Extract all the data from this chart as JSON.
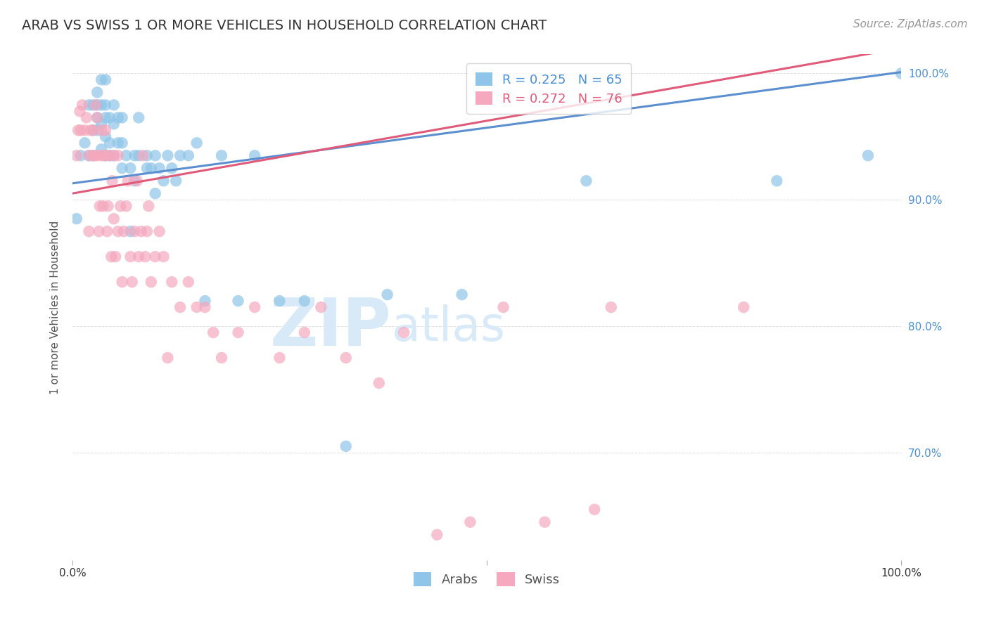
{
  "title": "ARAB VS SWISS 1 OR MORE VEHICLES IN HOUSEHOLD CORRELATION CHART",
  "source": "Source: ZipAtlas.com",
  "ylabel": "1 or more Vehicles in Household",
  "xlim": [
    0.0,
    1.0
  ],
  "ylim": [
    0.615,
    1.015
  ],
  "yticks": [
    0.9,
    1.0
  ],
  "ytick_labels_right": [
    "90.0%",
    "100.0%"
  ],
  "ytick_positions": [
    0.9,
    1.0
  ],
  "arab_color": "#8ec5e8",
  "swiss_color": "#f5a8be",
  "arab_R": 0.225,
  "arab_N": 65,
  "swiss_R": 0.272,
  "swiss_N": 76,
  "line_color_arab": "#5b8fcf",
  "line_color_swiss": "#e05a7a",
  "watermark_zip": "ZIP",
  "watermark_atlas": "atlas",
  "watermark_color": "#d8eaf8",
  "arab_x": [
    0.005,
    0.01,
    0.015,
    0.02,
    0.02,
    0.025,
    0.025,
    0.025,
    0.03,
    0.03,
    0.03,
    0.03,
    0.035,
    0.035,
    0.035,
    0.035,
    0.04,
    0.04,
    0.04,
    0.04,
    0.04,
    0.045,
    0.045,
    0.045,
    0.05,
    0.05,
    0.05,
    0.055,
    0.055,
    0.06,
    0.06,
    0.06,
    0.065,
    0.07,
    0.07,
    0.075,
    0.075,
    0.08,
    0.08,
    0.09,
    0.09,
    0.095,
    0.1,
    0.1,
    0.105,
    0.11,
    0.115,
    0.12,
    0.125,
    0.13,
    0.14,
    0.15,
    0.16,
    0.18,
    0.2,
    0.22,
    0.25,
    0.28,
    0.33,
    0.38,
    0.47,
    0.62,
    0.85,
    0.96,
    1.0
  ],
  "arab_y": [
    0.885,
    0.935,
    0.945,
    0.935,
    0.975,
    0.935,
    0.955,
    0.975,
    0.955,
    0.965,
    0.975,
    0.985,
    0.94,
    0.96,
    0.975,
    0.995,
    0.935,
    0.95,
    0.965,
    0.975,
    0.995,
    0.935,
    0.945,
    0.965,
    0.935,
    0.96,
    0.975,
    0.945,
    0.965,
    0.925,
    0.945,
    0.965,
    0.935,
    0.875,
    0.925,
    0.915,
    0.935,
    0.935,
    0.965,
    0.925,
    0.935,
    0.925,
    0.905,
    0.935,
    0.925,
    0.915,
    0.935,
    0.925,
    0.915,
    0.935,
    0.935,
    0.945,
    0.82,
    0.935,
    0.82,
    0.935,
    0.82,
    0.82,
    0.705,
    0.825,
    0.825,
    0.915,
    0.915,
    0.935,
    1.0
  ],
  "swiss_x": [
    0.005,
    0.007,
    0.009,
    0.01,
    0.012,
    0.015,
    0.017,
    0.02,
    0.02,
    0.022,
    0.025,
    0.025,
    0.027,
    0.028,
    0.03,
    0.03,
    0.032,
    0.033,
    0.035,
    0.035,
    0.037,
    0.038,
    0.04,
    0.04,
    0.042,
    0.043,
    0.045,
    0.047,
    0.048,
    0.05,
    0.05,
    0.052,
    0.055,
    0.055,
    0.058,
    0.06,
    0.062,
    0.065,
    0.067,
    0.07,
    0.072,
    0.075,
    0.078,
    0.08,
    0.083,
    0.085,
    0.088,
    0.09,
    0.092,
    0.095,
    0.1,
    0.105,
    0.11,
    0.115,
    0.12,
    0.13,
    0.14,
    0.15,
    0.16,
    0.17,
    0.18,
    0.2,
    0.22,
    0.25,
    0.28,
    0.3,
    0.33,
    0.37,
    0.4,
    0.44,
    0.48,
    0.52,
    0.57,
    0.63,
    0.65,
    0.81
  ],
  "swiss_y": [
    0.935,
    0.955,
    0.97,
    0.955,
    0.975,
    0.955,
    0.965,
    0.875,
    0.935,
    0.955,
    0.935,
    0.955,
    0.935,
    0.975,
    0.935,
    0.965,
    0.875,
    0.895,
    0.935,
    0.955,
    0.895,
    0.935,
    0.935,
    0.955,
    0.875,
    0.895,
    0.935,
    0.855,
    0.915,
    0.885,
    0.935,
    0.855,
    0.875,
    0.935,
    0.895,
    0.835,
    0.875,
    0.895,
    0.915,
    0.855,
    0.835,
    0.875,
    0.915,
    0.855,
    0.875,
    0.935,
    0.855,
    0.875,
    0.895,
    0.835,
    0.855,
    0.875,
    0.855,
    0.775,
    0.835,
    0.815,
    0.835,
    0.815,
    0.815,
    0.795,
    0.775,
    0.795,
    0.815,
    0.775,
    0.795,
    0.815,
    0.775,
    0.755,
    0.795,
    0.635,
    0.645,
    0.815,
    0.645,
    0.655,
    0.815,
    0.815
  ],
  "background_color": "#ffffff",
  "grid_color": "#e0e0e0",
  "title_fontsize": 14,
  "axis_label_fontsize": 11,
  "tick_fontsize": 11,
  "legend_fontsize": 13,
  "source_fontsize": 11
}
